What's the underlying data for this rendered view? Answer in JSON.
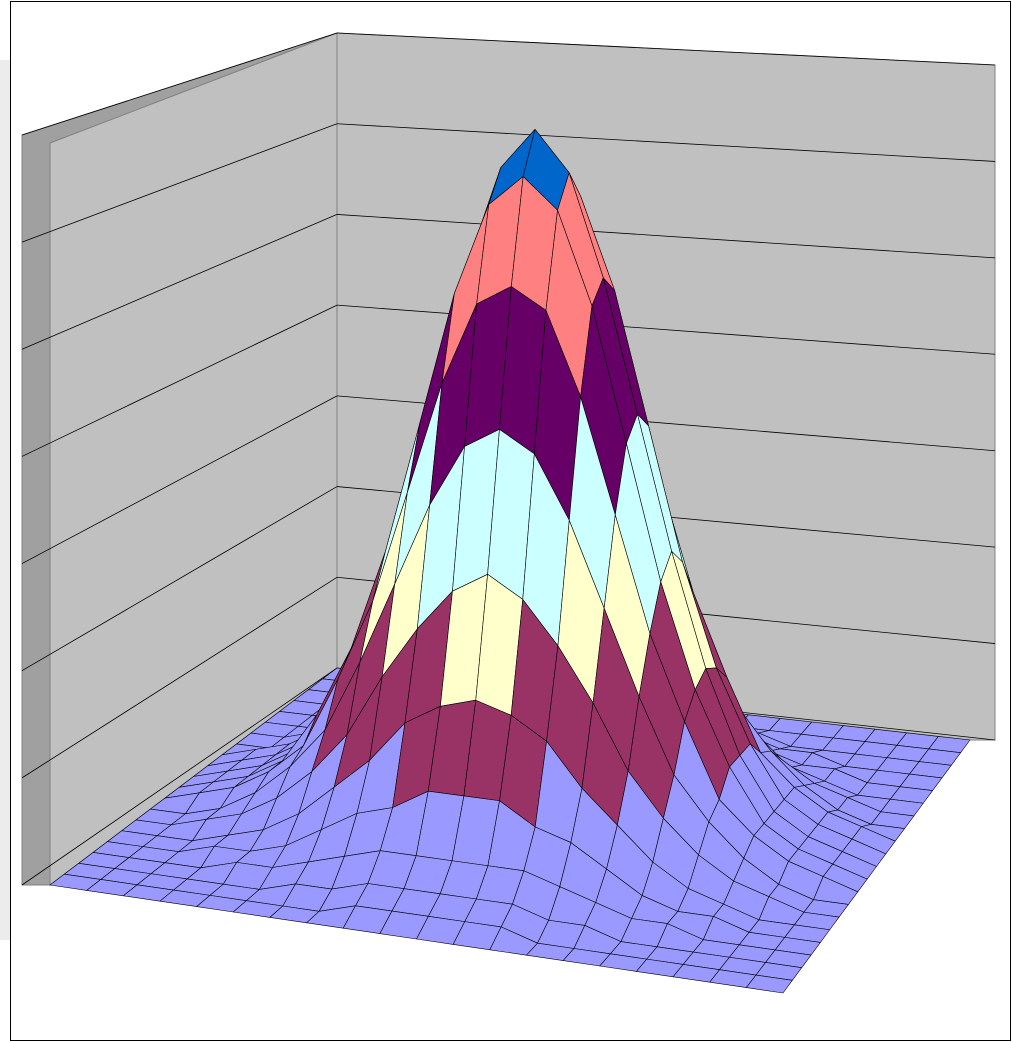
{
  "chart_data": {
    "type": "surface",
    "zlim": [
      0,
      0.7
    ],
    "zticks": [
      0,
      0.1,
      0.2,
      0.3,
      0.4,
      0.5,
      0.6,
      0.7
    ],
    "band_colors": [
      "#9999ff",
      "#993366",
      "#ffffcc",
      "#ccffff",
      "#660066",
      "#ff8080",
      "#0066cc"
    ],
    "wall_color": "#c0c0c0",
    "grid": true,
    "z": [
      [
        0,
        0,
        0,
        0,
        0,
        0,
        0,
        0,
        0,
        0,
        0,
        0,
        0,
        0,
        0,
        0,
        0,
        0,
        0,
        0,
        0
      ],
      [
        0,
        0,
        0,
        0,
        0,
        0,
        0,
        0,
        0.01,
        0.01,
        0.01,
        0.01,
        0.01,
        0,
        0,
        0,
        0,
        0,
        0,
        0,
        0
      ],
      [
        0,
        0,
        0,
        0,
        0,
        0,
        0.01,
        0.01,
        0.02,
        0.02,
        0.02,
        0.02,
        0.02,
        0.01,
        0.01,
        0,
        0,
        0,
        0,
        0,
        0
      ],
      [
        0,
        0,
        0,
        0,
        0.01,
        0.01,
        0.02,
        0.03,
        0.04,
        0.04,
        0.04,
        0.04,
        0.04,
        0.03,
        0.02,
        0.01,
        0.01,
        0,
        0,
        0,
        0
      ],
      [
        0,
        0,
        0,
        0.01,
        0.01,
        0.02,
        0.04,
        0.06,
        0.07,
        0.09,
        0.09,
        0.09,
        0.07,
        0.06,
        0.04,
        0.02,
        0.01,
        0.01,
        0,
        0,
        0
      ],
      [
        0,
        0,
        0,
        0.01,
        0.02,
        0.04,
        0.07,
        0.1,
        0.14,
        0.16,
        0.17,
        0.16,
        0.14,
        0.1,
        0.07,
        0.04,
        0.02,
        0.01,
        0,
        0,
        0
      ],
      [
        0,
        0,
        0.01,
        0.02,
        0.04,
        0.07,
        0.11,
        0.17,
        0.22,
        0.26,
        0.28,
        0.26,
        0.22,
        0.17,
        0.11,
        0.07,
        0.04,
        0.02,
        0.01,
        0,
        0
      ],
      [
        0,
        0,
        0.01,
        0.03,
        0.06,
        0.1,
        0.17,
        0.25,
        0.33,
        0.39,
        0.41,
        0.39,
        0.33,
        0.25,
        0.17,
        0.1,
        0.06,
        0.03,
        0.01,
        0,
        0
      ],
      [
        0,
        0.01,
        0.02,
        0.04,
        0.07,
        0.14,
        0.22,
        0.33,
        0.44,
        0.52,
        0.54,
        0.52,
        0.44,
        0.33,
        0.22,
        0.14,
        0.07,
        0.04,
        0.02,
        0.01,
        0
      ],
      [
        0,
        0.01,
        0.02,
        0.04,
        0.09,
        0.16,
        0.26,
        0.39,
        0.52,
        0.61,
        0.64,
        0.61,
        0.52,
        0.39,
        0.26,
        0.16,
        0.09,
        0.04,
        0.02,
        0.01,
        0
      ],
      [
        0,
        0.01,
        0.02,
        0.04,
        0.09,
        0.17,
        0.28,
        0.41,
        0.54,
        0.64,
        0.68,
        0.64,
        0.54,
        0.41,
        0.28,
        0.17,
        0.09,
        0.04,
        0.02,
        0.01,
        0
      ],
      [
        0,
        0.01,
        0.02,
        0.04,
        0.09,
        0.16,
        0.26,
        0.39,
        0.52,
        0.61,
        0.64,
        0.61,
        0.52,
        0.39,
        0.26,
        0.16,
        0.09,
        0.04,
        0.02,
        0.01,
        0
      ],
      [
        0,
        0.01,
        0.02,
        0.04,
        0.07,
        0.14,
        0.22,
        0.33,
        0.44,
        0.52,
        0.54,
        0.52,
        0.44,
        0.33,
        0.22,
        0.14,
        0.07,
        0.04,
        0.02,
        0.01,
        0
      ],
      [
        0,
        0,
        0.01,
        0.03,
        0.06,
        0.1,
        0.17,
        0.25,
        0.33,
        0.39,
        0.41,
        0.39,
        0.33,
        0.25,
        0.17,
        0.1,
        0.06,
        0.03,
        0.01,
        0,
        0
      ],
      [
        0,
        0,
        0.01,
        0.02,
        0.04,
        0.07,
        0.11,
        0.17,
        0.22,
        0.26,
        0.28,
        0.26,
        0.22,
        0.17,
        0.11,
        0.07,
        0.04,
        0.02,
        0.01,
        0,
        0
      ],
      [
        0,
        0,
        0,
        0.01,
        0.02,
        0.04,
        0.07,
        0.1,
        0.14,
        0.16,
        0.17,
        0.16,
        0.14,
        0.1,
        0.07,
        0.04,
        0.02,
        0.01,
        0,
        0,
        0
      ],
      [
        0,
        0,
        0,
        0.01,
        0.01,
        0.02,
        0.04,
        0.06,
        0.07,
        0.09,
        0.09,
        0.09,
        0.07,
        0.06,
        0.04,
        0.02,
        0.01,
        0.01,
        0,
        0,
        0
      ],
      [
        0,
        0,
        0,
        0,
        0.01,
        0.01,
        0.02,
        0.03,
        0.04,
        0.04,
        0.04,
        0.04,
        0.04,
        0.03,
        0.02,
        0.01,
        0.01,
        0,
        0,
        0,
        0
      ],
      [
        0,
        0,
        0,
        0,
        0,
        0,
        0.01,
        0.01,
        0.02,
        0.02,
        0.02,
        0.02,
        0.02,
        0.01,
        0.01,
        0,
        0,
        0,
        0,
        0,
        0
      ],
      [
        0,
        0,
        0,
        0,
        0,
        0,
        0,
        0,
        0.01,
        0.01,
        0.01,
        0.01,
        0.01,
        0,
        0,
        0,
        0,
        0,
        0,
        0,
        0
      ],
      [
        0,
        0,
        0,
        0,
        0,
        0,
        0,
        0,
        0,
        0,
        0,
        0,
        0,
        0,
        0,
        0,
        0,
        0,
        0,
        0,
        0
      ]
    ]
  }
}
